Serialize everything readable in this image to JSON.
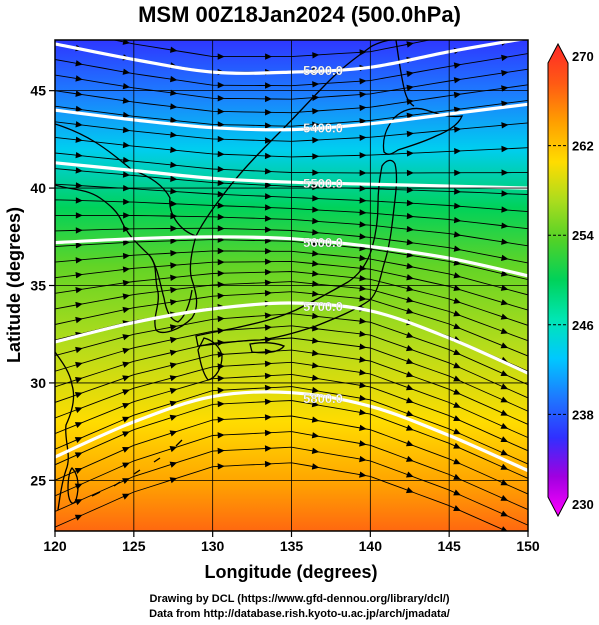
{
  "title": "MSM 00Z18Jan2024 (500.0hPa)",
  "credits": {
    "line1": "Drawing by DCL (https://www.gfd-dennou.org/library/dcl/)",
    "line2": "Data from http://database.rish.kyoto-u.ac.jp/arch/jmadata/"
  },
  "map": {
    "xlabel": "Longitude (degrees)",
    "ylabel": "Latitude  (degrees)",
    "lon_range": [
      120,
      150
    ],
    "lat_range": [
      22.4,
      47.6
    ],
    "lon_ticks": [
      120,
      125,
      130,
      135,
      140,
      145,
      150
    ],
    "lat_ticks": [
      25,
      30,
      35,
      40,
      45
    ],
    "contours": [
      {
        "label": "5300.0",
        "lon": [
          120,
          125,
          130,
          135,
          140,
          145,
          150
        ],
        "lat": [
          47.4,
          46.6,
          45.95,
          45.95,
          46.2,
          47.0,
          47.7
        ]
      },
      {
        "label": "5400.0",
        "lon": [
          120,
          125,
          130,
          135,
          140,
          145,
          150
        ],
        "lat": [
          44.0,
          43.5,
          43.1,
          43.0,
          43.3,
          43.8,
          44.3
        ]
      },
      {
        "label": "5500.0",
        "lon": [
          120,
          125,
          130,
          135,
          140,
          145,
          150
        ],
        "lat": [
          41.3,
          40.9,
          40.5,
          40.3,
          40.2,
          40.1,
          40.0
        ]
      },
      {
        "label": "5600.0",
        "lon": [
          120,
          125,
          130,
          135,
          140,
          145,
          150
        ],
        "lat": [
          37.2,
          37.4,
          37.5,
          37.4,
          37.0,
          36.4,
          35.5
        ]
      },
      {
        "label": "5700.0",
        "lon": [
          120,
          125,
          130,
          135,
          140,
          145,
          150
        ],
        "lat": [
          32.1,
          33.1,
          33.8,
          34.1,
          33.7,
          32.3,
          30.5
        ]
      },
      {
        "label": "5800.0",
        "lon": [
          120,
          125,
          130,
          135,
          140,
          145,
          150
        ],
        "lat": [
          26.2,
          28.0,
          29.3,
          29.5,
          28.8,
          27.3,
          25.5
        ]
      }
    ],
    "temperature_field": [
      {
        "lat": 47.6,
        "value": 237
      },
      {
        "lat": 45.0,
        "value": 240
      },
      {
        "lat": 42.0,
        "value": 244
      },
      {
        "lat": 39.0,
        "value": 250
      },
      {
        "lat": 36.0,
        "value": 254
      },
      {
        "lat": 32.0,
        "value": 257
      },
      {
        "lat": 28.0,
        "value": 260
      },
      {
        "lat": 25.0,
        "value": 263
      },
      {
        "lat": 22.4,
        "value": 266
      }
    ]
  },
  "colorbar": {
    "min": 230,
    "max": 270,
    "ticks": [
      230,
      238,
      246,
      254,
      262,
      270
    ],
    "colors": [
      "#ff00ff",
      "#a000e0",
      "#3030ff",
      "#1e78ff",
      "#00c8ff",
      "#00e6b4",
      "#00d25a",
      "#50d228",
      "#aadc1e",
      "#ffdc00",
      "#ffa000",
      "#ff5a14",
      "#ff2828"
    ]
  }
}
